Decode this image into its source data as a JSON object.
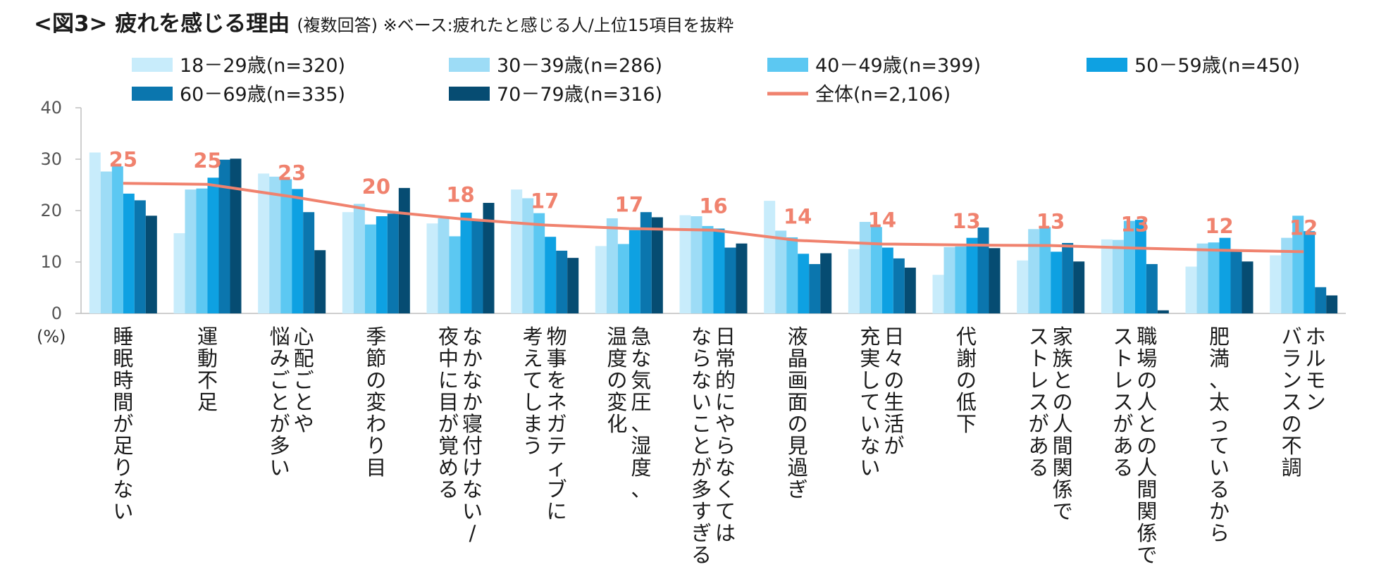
{
  "chart_data": {
    "type": "bar",
    "title": "<図3> 疲れを感じる理由",
    "subtitle": "(複数回答) ※ベース:疲れたと感じる人/上位15項目を抜粋",
    "unit_label": "(%)",
    "ylim": [
      0,
      40
    ],
    "yticks": [
      "0",
      "10",
      "20",
      "30",
      "40"
    ],
    "categories": [
      [
        "睡眠時間が足りない"
      ],
      [
        "運動不足"
      ],
      [
        "心配ごとや",
        "悩みごとが多い"
      ],
      [
        "季節の変わり目"
      ],
      [
        "なかなか寝付けない/",
        "夜中に目が覚める"
      ],
      [
        "物事をネガティブに",
        "考えてしまう"
      ],
      [
        "急な気圧、湿度、",
        "温度の変化"
      ],
      [
        "日常的にやらなくては",
        "ならないことが多すぎる"
      ],
      [
        "液晶画面の見過ぎ"
      ],
      [
        "日々の生活が",
        "充実していない"
      ],
      [
        "代謝の低下"
      ],
      [
        "家族との人間関係で",
        "ストレスがある"
      ],
      [
        "職場の人との人間関係で",
        "ストレスがある"
      ],
      [
        "肥満、太っているから"
      ],
      [
        "ホルモン",
        "バランスの不調"
      ]
    ],
    "series": [
      {
        "name": "18-29歳(n=320)",
        "legend": "18－29歳(n=320)",
        "color": "#c8ecfb",
        "values": [
          31.3,
          15.6,
          27.2,
          19.7,
          17.5,
          24.1,
          13.1,
          19.1,
          21.9,
          12.5,
          7.5,
          10.3,
          14.4,
          9.1,
          11.3
        ]
      },
      {
        "name": "30-39歳(n=286)",
        "legend": "30－39歳(n=286)",
        "color": "#9ddcf6",
        "values": [
          27.6,
          24.1,
          26.6,
          21.3,
          18.5,
          22.4,
          18.5,
          18.9,
          16.1,
          17.8,
          12.9,
          16.4,
          14.3,
          13.6,
          14.7
        ]
      },
      {
        "name": "40-49歳(n=399)",
        "legend": "40－49歳(n=399)",
        "color": "#5cc8f2",
        "values": [
          28.6,
          24.3,
          26.1,
          17.3,
          15.0,
          19.5,
          13.5,
          17.0,
          14.8,
          16.8,
          13.0,
          16.8,
          18.0,
          13.8,
          19.0
        ]
      },
      {
        "name": "50-59歳(n=450)",
        "legend": "50－59歳(n=450)",
        "color": "#0ea1e2",
        "values": [
          23.3,
          26.4,
          24.2,
          18.9,
          19.6,
          14.9,
          16.2,
          16.5,
          11.6,
          12.8,
          14.7,
          12.0,
          18.2,
          14.7,
          16.0
        ]
      },
      {
        "name": "60-69歳(n=335)",
        "legend": "60－69歳(n=335)",
        "color": "#0b76ae",
        "values": [
          22.0,
          29.9,
          19.7,
          19.4,
          18.2,
          12.2,
          19.7,
          12.8,
          9.6,
          10.7,
          16.7,
          13.7,
          9.6,
          12.0,
          5.1
        ]
      },
      {
        "name": "70-79歳(n=316)",
        "legend": "70－79歳(n=316)",
        "color": "#064c72",
        "values": [
          19.0,
          30.1,
          12.3,
          24.4,
          21.5,
          10.8,
          18.7,
          13.6,
          11.7,
          8.9,
          12.7,
          10.1,
          0.6,
          10.1,
          3.5
        ]
      }
    ],
    "line": {
      "name": "全体(n=2,106)",
      "legend": "全体(n=2,106)",
      "color": "#f0826e",
      "values": [
        25.3,
        25.1,
        22.7,
        20.0,
        18.4,
        17.2,
        16.5,
        16.2,
        14.2,
        13.5,
        13.3,
        13.2,
        12.7,
        12.3,
        12.0
      ],
      "labels": [
        "25",
        "25",
        "23",
        "20",
        "18",
        "17",
        "17",
        "16",
        "14",
        "14",
        "13",
        "13",
        "13",
        "12",
        "12"
      ]
    }
  }
}
